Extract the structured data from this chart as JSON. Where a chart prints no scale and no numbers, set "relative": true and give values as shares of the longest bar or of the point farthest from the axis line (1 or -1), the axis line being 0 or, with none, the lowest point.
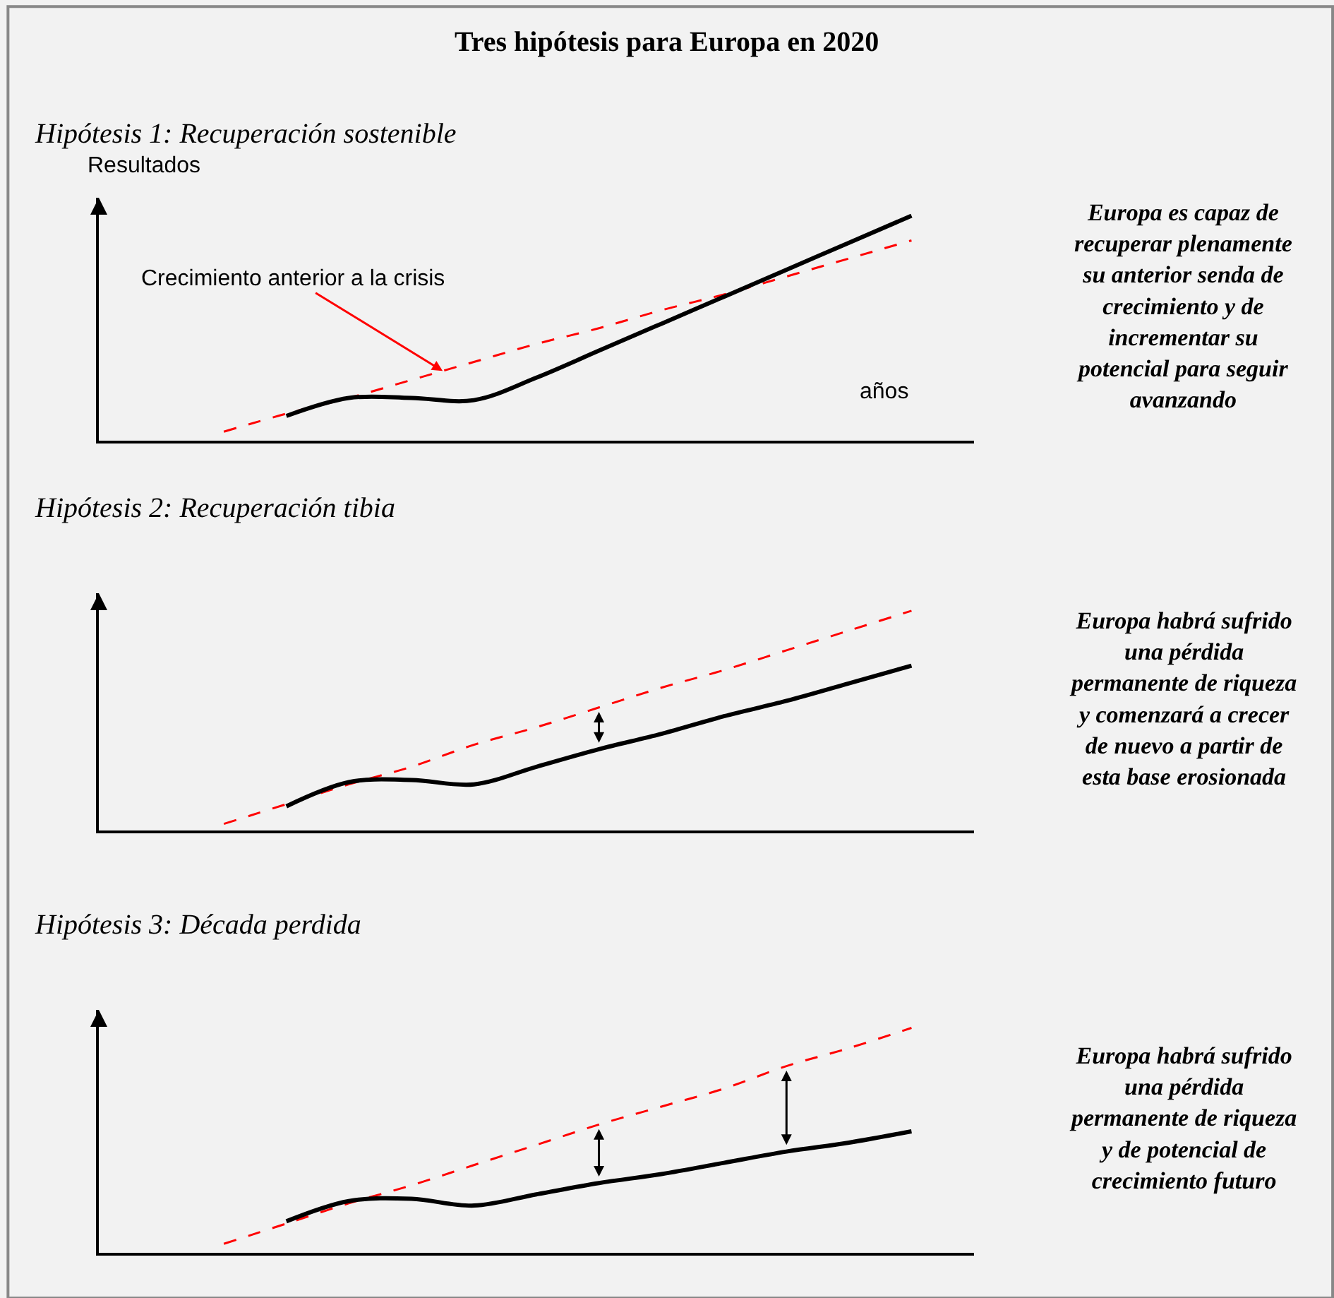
{
  "chart_data": [
    {
      "type": "line",
      "title": "Tres hipótesis para Europa en 2020",
      "subtitle": "Hipótesis 1: Recuperación sostenible",
      "xlabel": "años",
      "ylabel": "Resultados",
      "relative": true,
      "annotations": [
        "Europa es capaz de\nrecuperar plenamente\nsu anterior senda de\ncrecimiento y de\nincrementar su\npotencial para seguir\navanzando",
        "Crecimiento anterior a la crisis"
      ],
      "categories": [
        null,
        null,
        null,
        null,
        null,
        null,
        null,
        null,
        null,
        null,
        null,
        null
      ],
      "series": [
        {
          "color": "#ff0000",
          "line_style": "dashed",
          "values": [
            0.04,
            0.12,
            0.19,
            0.27,
            0.35,
            0.43,
            0.5,
            0.58,
            0.65,
            0.73,
            0.81,
            0.89
          ]
        },
        {
          "color": "#000000",
          "line_style": "solid",
          "values": [
            null,
            0.11,
            0.19,
            0.19,
            0.18,
            0.28,
            0.4,
            0.52,
            0.64,
            0.76,
            0.88,
            1
          ]
        }
      ]
    },
    {
      "type": "line",
      "title": "Hipótesis 2: Recuperación tibia",
      "relative": true,
      "annotations": [
        "Europa habrá sufrido\nuna pérdida\npermanente de riqueza\ny comenzará a crecer\nde nuevo a partir de\nesta base erosionada"
      ],
      "categories": [
        null,
        null,
        null,
        null,
        null,
        null,
        null,
        null,
        null,
        null,
        null,
        null
      ],
      "series": [
        {
          "color": "#ff0000",
          "line_style": "dashed",
          "values": [
            0.03,
            0.12,
            0.21,
            0.29,
            0.39,
            0.47,
            0.56,
            0.65,
            0.73,
            0.82,
            0.91,
            1
          ]
        },
        {
          "color": "#000000",
          "line_style": "solid",
          "values": [
            null,
            0.11,
            0.22,
            0.23,
            0.21,
            0.29,
            0.37,
            0.44,
            0.52,
            0.59,
            0.67,
            0.75
          ]
        }
      ]
    },
    {
      "type": "line",
      "title": "Hipótesis 3: Década perdida",
      "relative": true,
      "annotations": [
        "Europa habrá sufrido\nuna pérdida\npermanente de riqueza\ny de potencial de\ncrecimiento futuro"
      ],
      "categories": [
        null,
        null,
        null,
        null,
        null,
        null,
        null,
        null,
        null,
        null,
        null,
        null
      ],
      "series": [
        {
          "color": "#ff0000",
          "line_style": "dashed",
          "values": [
            0.04,
            0.13,
            0.22,
            0.3,
            0.39,
            0.48,
            0.57,
            0.65,
            0.73,
            0.83,
            0.91,
            1
          ]
        },
        {
          "color": "#000000",
          "line_style": "solid",
          "values": [
            null,
            0.14,
            0.23,
            0.24,
            0.21,
            0.26,
            0.31,
            0.35,
            0.4,
            0.45,
            0.49,
            0.54
          ]
        }
      ]
    }
  ]
}
